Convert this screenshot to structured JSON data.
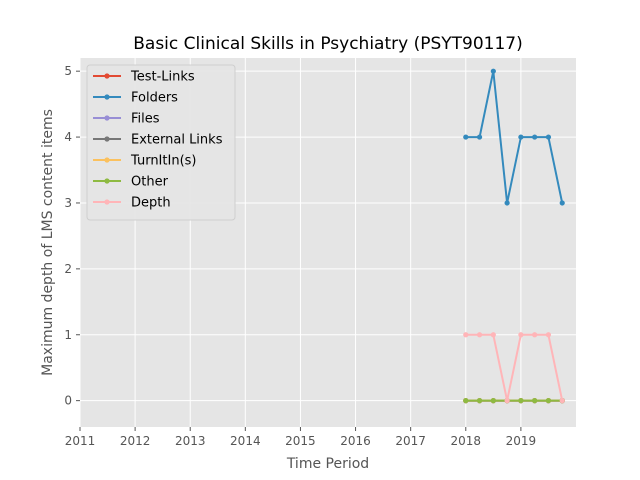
{
  "chart_data": {
    "type": "line",
    "title": "Basic Clinical Skills in Psychiatry (PSYT90117)",
    "xlabel": "Time Period",
    "ylabel": "Maximum depth of LMS content items",
    "xlim": [
      2011,
      2020
    ],
    "ylim": [
      -0.4,
      5.2
    ],
    "x_ticks": [
      2011,
      2012,
      2013,
      2014,
      2015,
      2016,
      2017,
      2018,
      2019
    ],
    "y_ticks": [
      0,
      1,
      2,
      3,
      4,
      5
    ],
    "grid": true,
    "legend_position": "top-left",
    "x": [
      2018.0,
      2018.25,
      2018.5,
      2018.75,
      2019.0,
      2019.25,
      2019.5,
      2019.75
    ],
    "series": [
      {
        "name": "Test-Links",
        "color": "#E24A33",
        "values": [
          0,
          0,
          0,
          0,
          0,
          0,
          0,
          0
        ]
      },
      {
        "name": "Folders",
        "color": "#348ABD",
        "values": [
          4,
          4,
          5,
          3,
          4,
          4,
          4,
          3
        ]
      },
      {
        "name": "Files",
        "color": "#988ED5",
        "values": [
          0,
          0,
          0,
          0,
          0,
          0,
          0,
          0
        ]
      },
      {
        "name": "External Links",
        "color": "#777777",
        "values": [
          0,
          0,
          0,
          0,
          0,
          0,
          0,
          0
        ]
      },
      {
        "name": "TurnItIn(s)",
        "color": "#FBC15E",
        "values": [
          0,
          0,
          0,
          0,
          0,
          0,
          0,
          0
        ]
      },
      {
        "name": "Other",
        "color": "#8EBA42",
        "values": [
          0,
          0,
          0,
          0,
          0,
          0,
          0,
          0
        ]
      },
      {
        "name": "Depth",
        "color": "#FFB5B8",
        "values": [
          1,
          1,
          1,
          0,
          1,
          1,
          1,
          0
        ]
      }
    ]
  }
}
